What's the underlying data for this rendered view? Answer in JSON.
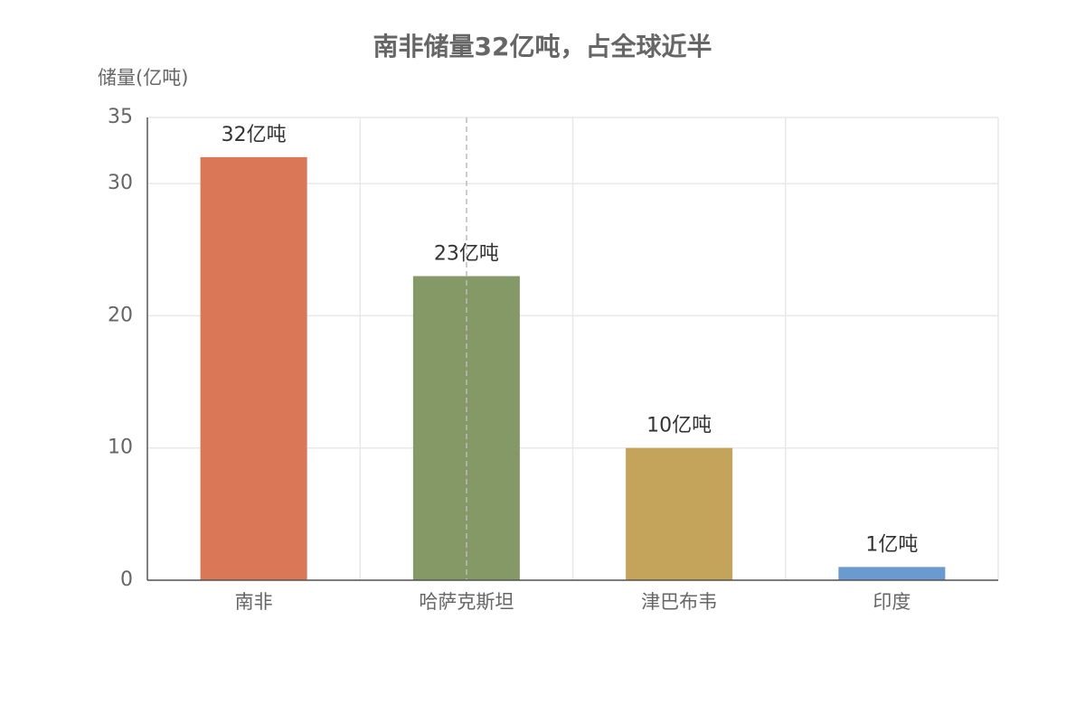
{
  "chart_data": {
    "type": "bar",
    "title": "南非储量32亿吨，占全球近半",
    "y_label": "储量(亿吨)",
    "categories": [
      "南非",
      "哈萨克斯坦",
      "津巴布韦",
      "印度"
    ],
    "values": [
      32,
      23,
      10,
      1
    ],
    "value_labels": [
      "32亿吨",
      "23亿吨",
      "10亿吨",
      "1亿吨"
    ],
    "colors": [
      "#d97757",
      "#849966",
      "#c4a35a",
      "#6a9ad0"
    ],
    "ylim": [
      0,
      35
    ],
    "yticks": [
      0,
      10,
      20,
      30,
      35
    ],
    "grid": true
  }
}
